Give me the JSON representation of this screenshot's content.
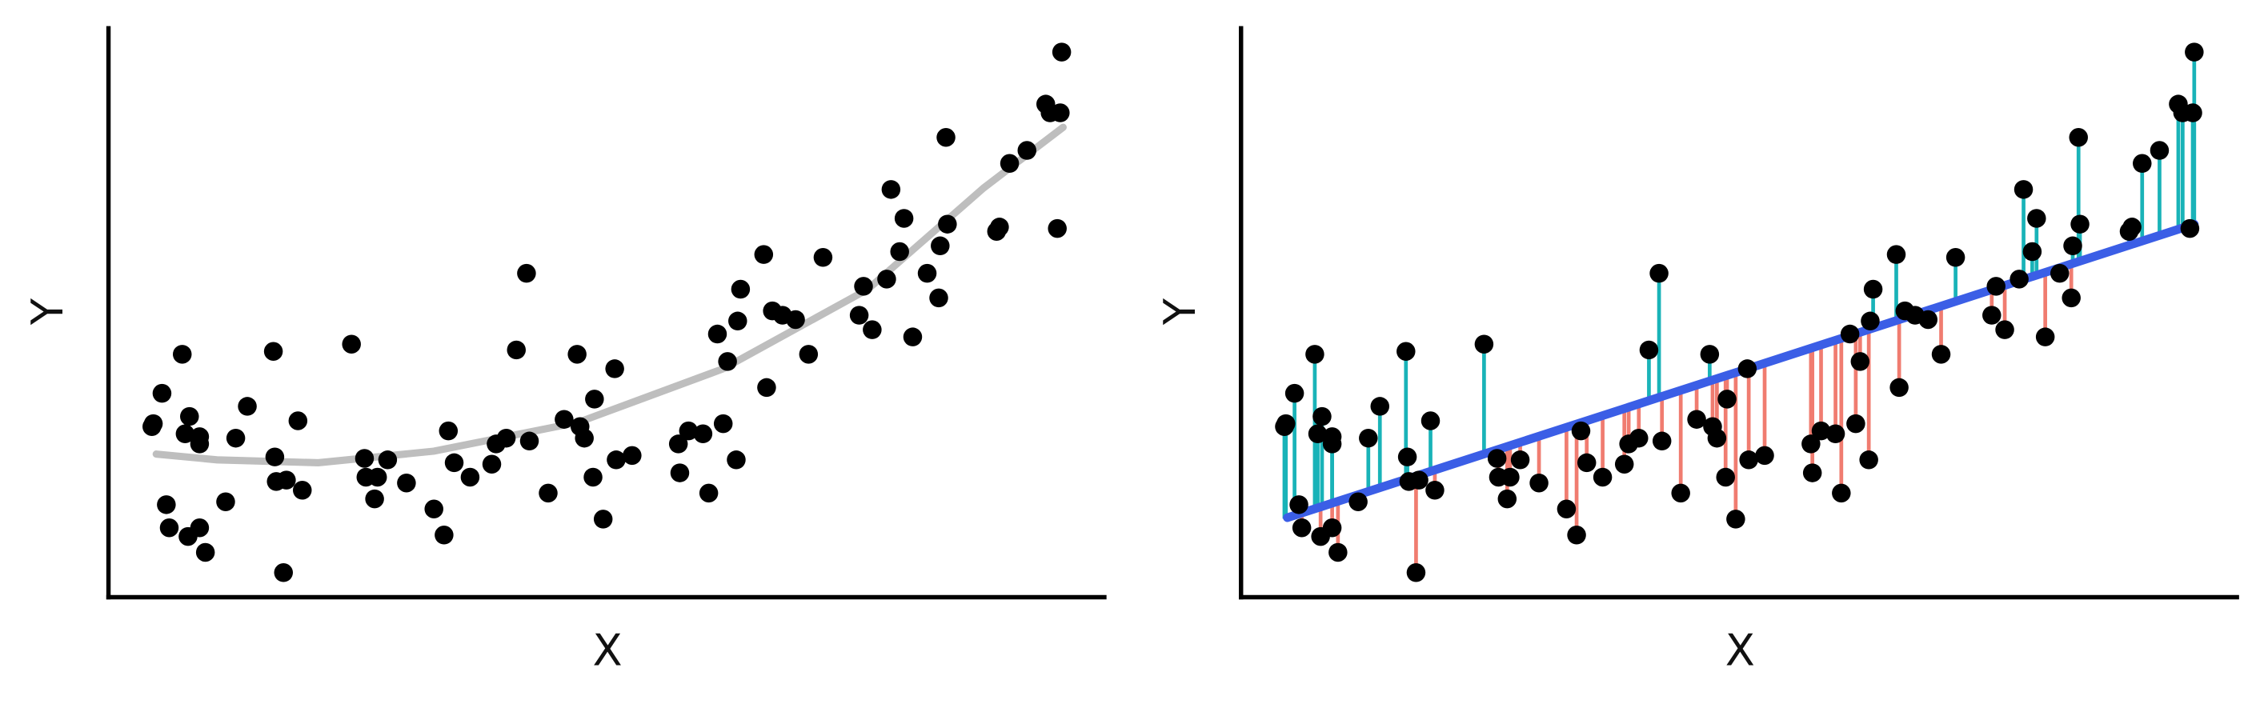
{
  "chart_data": [
    {
      "type": "scatter",
      "xlabel": "X",
      "ylabel": "Y",
      "xlim": [
        0,
        690
      ],
      "ylim": [
        0,
        395
      ],
      "point_color": "#000000",
      "points": {
        "x": [
          30,
          37,
          51,
          31,
          53,
          56,
          63,
          63,
          40,
          42,
          55,
          63,
          67,
          81,
          88,
          96,
          114,
          115,
          116,
          123,
          131,
          134,
          121,
          168,
          177,
          178,
          184,
          186,
          193,
          206,
          225,
          232,
          235,
          239,
          250,
          265,
          268,
          275,
          282,
          289,
          291,
          304,
          315,
          324,
          326,
          329,
          335,
          336,
          342,
          350,
          351,
          362,
          394,
          395,
          401,
          411,
          415,
          425,
          434,
          421,
          428,
          435,
          437,
          453,
          455,
          459,
          466,
          475,
          484,
          494,
          519,
          522,
          528,
          538,
          541,
          547,
          550,
          556,
          566,
          574,
          575,
          580,
          579,
          614,
          616,
          623,
          635,
          648,
          651,
          658,
          656,
          659
        ],
        "y": [
          118,
          141,
          168,
          120,
          113,
          125,
          111,
          106,
          64,
          48,
          42,
          48,
          31,
          66,
          110,
          132,
          170,
          97,
          80,
          81,
          122,
          74,
          17,
          175,
          96,
          83,
          68,
          83,
          95,
          79,
          61,
          43,
          115,
          93,
          83,
          92,
          106,
          110,
          171,
          224,
          108,
          72,
          123,
          168,
          118,
          110,
          83,
          137,
          54,
          158,
          95,
          98,
          106,
          86,
          115,
          113,
          72,
          120,
          95,
          182,
          163,
          191,
          213,
          237,
          145,
          198,
          195,
          192,
          168,
          235,
          195,
          215,
          185,
          220,
          282,
          239,
          262,
          180,
          224,
          207,
          243,
          258,
          318,
          253,
          256,
          300,
          309,
          341,
          335,
          335,
          255,
          377
        ]
      },
      "fit": {
        "x": [
          33,
          75,
          145,
          225,
          325,
          425,
          525,
          605,
          660
        ],
        "y": [
          99,
          95,
          93,
          101,
          121,
          158,
          213,
          283,
          325
        ],
        "color": "#bebebe"
      }
    },
    {
      "type": "residuals",
      "xlabel": "X",
      "ylabel": "Y",
      "xlim": [
        0,
        690
      ],
      "ylim": [
        0,
        395
      ],
      "point_color": "#000000",
      "points": {
        "x": [
          30,
          37,
          51,
          31,
          53,
          56,
          63,
          63,
          40,
          42,
          55,
          63,
          67,
          81,
          88,
          96,
          114,
          115,
          116,
          123,
          131,
          134,
          121,
          168,
          177,
          178,
          184,
          186,
          193,
          206,
          225,
          232,
          235,
          239,
          250,
          265,
          268,
          275,
          282,
          289,
          291,
          304,
          315,
          324,
          326,
          329,
          335,
          336,
          342,
          350,
          351,
          362,
          394,
          395,
          401,
          411,
          415,
          425,
          434,
          421,
          428,
          435,
          437,
          453,
          455,
          459,
          466,
          475,
          484,
          494,
          519,
          522,
          528,
          538,
          541,
          547,
          550,
          556,
          566,
          574,
          575,
          580,
          579,
          614,
          616,
          623,
          635,
          648,
          651,
          658,
          656,
          659
        ],
        "y": [
          118,
          141,
          168,
          120,
          113,
          125,
          111,
          106,
          64,
          48,
          42,
          48,
          31,
          66,
          110,
          132,
          170,
          97,
          80,
          81,
          122,
          74,
          17,
          175,
          96,
          83,
          68,
          83,
          95,
          79,
          61,
          43,
          115,
          93,
          83,
          92,
          106,
          110,
          171,
          224,
          108,
          72,
          123,
          168,
          118,
          110,
          83,
          137,
          54,
          158,
          95,
          98,
          106,
          86,
          115,
          113,
          72,
          120,
          95,
          182,
          163,
          191,
          213,
          237,
          145,
          198,
          195,
          192,
          168,
          235,
          195,
          215,
          185,
          220,
          282,
          239,
          262,
          180,
          224,
          207,
          243,
          258,
          318,
          253,
          256,
          300,
          309,
          341,
          335,
          335,
          255,
          377
        ]
      },
      "fit": {
        "x": [
          32,
          659
        ],
        "y": [
          55,
          258
        ],
        "color": "#3b5ee6"
      },
      "residual_colors": {
        "above": "#19b3b8",
        "below": "#f07c70"
      }
    }
  ]
}
